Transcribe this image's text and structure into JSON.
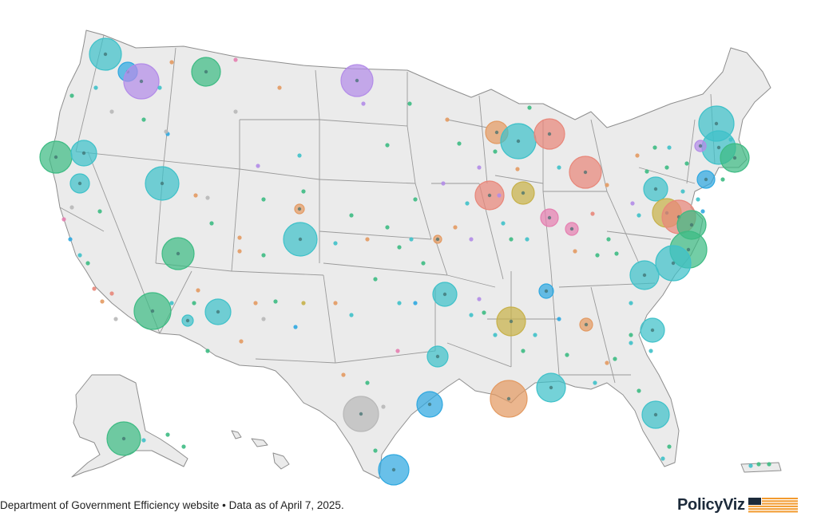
{
  "footer": {
    "source": "Department of Government Efficiency website • Data as of April 7, 2025.",
    "brand": "PolicyViz"
  },
  "colors": {
    "land": "#ebebeb",
    "border": "#8e8e8e",
    "teal": "#3fc1c9",
    "green": "#3dbb83",
    "blue": "#2fa8e0",
    "purple": "#b38ce8",
    "orange": "#e39a62",
    "salmon": "#e8877a",
    "pink": "#e57fb0",
    "olive": "#c7b14a",
    "gray": "#b8b8b8",
    "brand_orange": "#f29a2e",
    "brand_navy": "#1c2a3a"
  },
  "bubble_colors": [
    "teal",
    "green",
    "blue",
    "purple",
    "orange",
    "salmon",
    "pink",
    "olive",
    "gray"
  ]
}
